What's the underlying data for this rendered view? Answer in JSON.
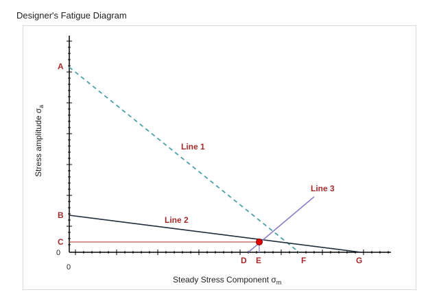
{
  "title": "Designer's Fatigue Diagram",
  "axes": {
    "y_label": "Stress amplitude σ",
    "y_label_sub": "a",
    "x_label": "Steady Stress Component σ",
    "x_label_sub": "m",
    "origin_y_label": "0",
    "origin_x_label": "0"
  },
  "points": {
    "A": "A",
    "B": "B",
    "C": "C",
    "D": "D",
    "E": "E",
    "F": "F",
    "G": "G"
  },
  "lines": {
    "line1": "Line 1",
    "line2": "Line 2",
    "line3": "Line 3"
  },
  "colors": {
    "line1": "#4a9fa8",
    "line2": "#1f2a3a",
    "line3": "#8e7cc3",
    "c_line": "#c0504d",
    "labels": "#a52a2a",
    "marker": "#e00000"
  }
}
